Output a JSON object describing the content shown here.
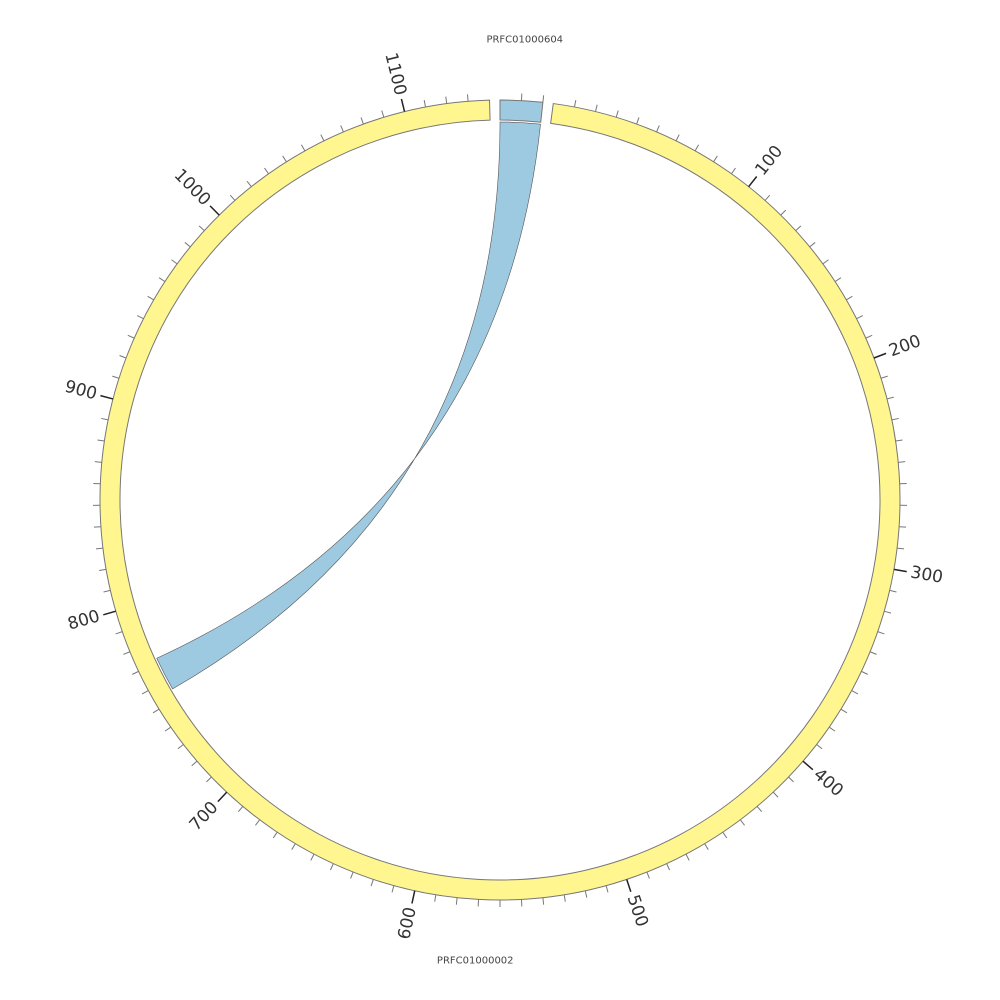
{
  "chart_data": {
    "type": "chord",
    "segments": [
      {
        "name": "PRFC01000604",
        "length": 20,
        "color": "#9ecae1",
        "ticks": [],
        "minor_ticks": [
          10,
          20
        ]
      },
      {
        "name": "PRFC01000002",
        "length": 1140,
        "color": "#fff68f",
        "ticks": [
          100,
          200,
          300,
          400,
          500,
          600,
          700,
          800,
          900,
          1000,
          1100
        ],
        "minor_ticks": [
          10,
          20,
          30,
          40,
          50,
          60,
          70,
          80,
          90,
          110,
          120,
          130,
          140,
          150,
          160,
          170,
          180,
          190,
          210,
          220,
          230,
          240,
          250,
          260,
          270,
          280,
          290,
          310,
          320,
          330,
          340,
          350,
          360,
          370,
          380,
          390,
          410,
          420,
          430,
          440,
          450,
          460,
          470,
          480,
          490,
          510,
          520,
          530,
          540,
          550,
          560,
          570,
          580,
          590,
          610,
          620,
          630,
          640,
          650,
          660,
          670,
          680,
          690,
          710,
          720,
          730,
          740,
          750,
          760,
          770,
          780,
          790,
          810,
          820,
          830,
          840,
          850,
          860,
          870,
          880,
          890,
          910,
          920,
          930,
          940,
          950,
          960,
          970,
          980,
          990,
          1010,
          1020,
          1030,
          1040,
          1050,
          1060,
          1070,
          1080,
          1090,
          1110,
          1120,
          1130
        ]
      }
    ],
    "links": [
      {
        "color": "#9ecae1",
        "from": {
          "segment": 0,
          "start": 0,
          "end": 20
        },
        "to": {
          "segment": 1,
          "start": 755,
          "end": 772
        }
      }
    ]
  }
}
